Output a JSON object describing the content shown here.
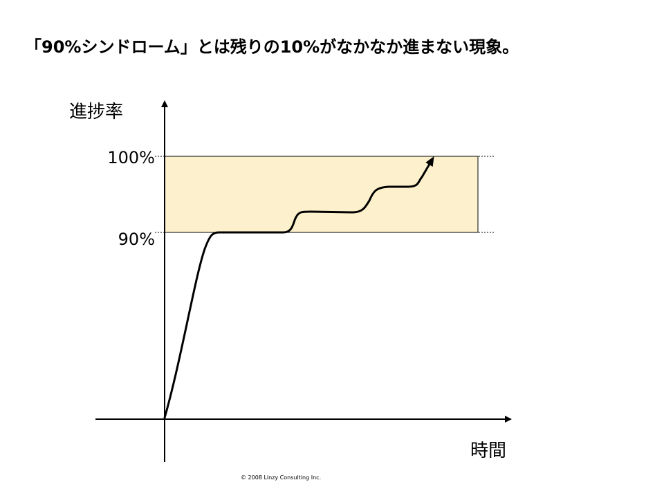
{
  "title": "「90%シンドローム」とは残りの10%がなかなか進まない現象。",
  "chart": {
    "y_axis_label": "進捗率",
    "x_axis_label": "時間",
    "tick_100": "100%",
    "tick_90": "90%"
  },
  "chart_data": {
    "type": "line",
    "title": "「90%シンドローム」とは残りの10%がなかなか進まない現象。",
    "xlabel": "時間",
    "ylabel": "進捗率",
    "y_ticks": [
      "90%",
      "100%"
    ],
    "highlight_band": {
      "from": 90,
      "to": 100,
      "color": "#FDF0CC"
    },
    "series": [
      {
        "values_description": "progress over time",
        "points": [
          [
            0,
            0
          ],
          [
            5,
            60
          ],
          [
            10,
            90
          ],
          [
            30,
            90
          ],
          [
            35,
            92.5
          ],
          [
            55,
            92.5
          ],
          [
            61,
            96
          ],
          [
            70,
            96.5
          ],
          [
            78,
            100
          ]
        ]
      }
    ]
  },
  "copyright": "© 2008 Linzy Consulting Inc.",
  "colors": {
    "band": "#FDF0CC",
    "band_border": "#000000",
    "curve": "#000000"
  }
}
